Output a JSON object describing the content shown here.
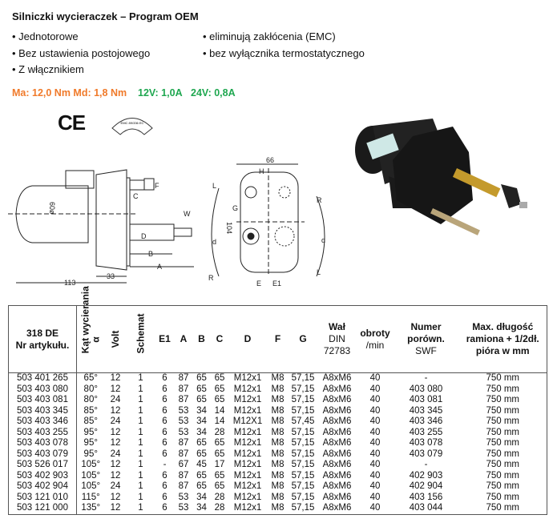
{
  "title": "Silniczki wycieraczek – Program OEM",
  "features_left": [
    "Jednotorowe",
    "Bez ustawienia postojowego",
    "Z włącznikiem"
  ],
  "features_right": [
    "eliminują zakłócenia (EMC)",
    "bez wyłącznika termostatycznego"
  ],
  "specs": {
    "torque": "Ma: 12,0 Nm Md: 1,8 Nm",
    "current_12v": "12V: 1,0A",
    "current_24v": "24V: 0,8A",
    "torque_color": "#f07a2a",
    "current_color": "#1fa750"
  },
  "marks": {
    "ce": "CE",
    "emc": "EMC 89/336 EC"
  },
  "drawing_labels": {
    "d113": "113",
    "d33": "33",
    "d60": "60ø",
    "A": "A",
    "B": "B",
    "C": "C",
    "D": "D",
    "F": "F",
    "W": "W",
    "d66": "66",
    "H": "H",
    "G": "G",
    "d104": "104",
    "E": "E",
    "E1": "E1",
    "R": "R",
    "L": "L",
    "d": "d"
  },
  "table": {
    "headers": {
      "article_1": "318 DE",
      "article_2": "Nr artykułu.",
      "angle_1": "Kąt wycierania",
      "angle_2": "α",
      "volt": "Volt",
      "schemat": "Schemat",
      "e1": "E1",
      "a": "A",
      "b": "B",
      "c": "C",
      "d": "D",
      "f": "F",
      "g": "G",
      "shaft_1": "Wał",
      "shaft_2": "DIN",
      "shaft_3": "72783",
      "rpm_1": "obroty",
      "rpm_2": "/min",
      "ref_1": "Numer",
      "ref_2": "porówn.",
      "ref_3": "SWF",
      "max_1": "Max. długość",
      "max_2": "ramiona + 1/2dł.",
      "max_3": "pióra w mm"
    },
    "rows": [
      [
        "503 401 265",
        "65°",
        "12",
        "1",
        "6",
        "87",
        "65",
        "65",
        "M12x1",
        "M8",
        "57,15",
        "A8xM6",
        "40",
        "-",
        "750 mm"
      ],
      [
        "503 403 080",
        "80°",
        "12",
        "1",
        "6",
        "87",
        "65",
        "65",
        "M12x1",
        "M8",
        "57,15",
        "A8xM6",
        "40",
        "403 080",
        "750 mm"
      ],
      [
        "503 403 081",
        "80°",
        "24",
        "1",
        "6",
        "87",
        "65",
        "65",
        "M12x1",
        "M8",
        "57,15",
        "A8xM6",
        "40",
        "403 081",
        "750 mm"
      ],
      [
        "503 403 345",
        "85°",
        "12",
        "1",
        "6",
        "53",
        "34",
        "14",
        "M12x1",
        "M8",
        "57,15",
        "A8xM6",
        "40",
        "403 345",
        "750 mm"
      ],
      [
        "503 403 346",
        "85°",
        "24",
        "1",
        "6",
        "53",
        "34",
        "14",
        "M12X1",
        "M8",
        "57,45",
        "A8xM6",
        "40",
        "403 346",
        "750 mm"
      ],
      [
        "503 403 255",
        "95°",
        "12",
        "1",
        "6",
        "53",
        "34",
        "28",
        "M12x1",
        "M8",
        "57,15",
        "A8xM6",
        "40",
        "403 255",
        "750 mm"
      ],
      [
        "503 403 078",
        "95°",
        "12",
        "1",
        "6",
        "87",
        "65",
        "65",
        "M12x1",
        "M8",
        "57,15",
        "A8xM6",
        "40",
        "403 078",
        "750 mm"
      ],
      [
        "503 403 079",
        "95°",
        "24",
        "1",
        "6",
        "87",
        "65",
        "65",
        "M12x1",
        "M8",
        "57,15",
        "A8xM6",
        "40",
        "403 079",
        "750 mm"
      ],
      [
        "503 526 017",
        "105°",
        "12",
        "1",
        "-",
        "67",
        "45",
        "17",
        "M12x1",
        "M8",
        "57,15",
        "A8xM6",
        "40",
        "-",
        "750 mm"
      ],
      [
        "503 402 903",
        "105°",
        "12",
        "1",
        "6",
        "87",
        "65",
        "65",
        "M12x1",
        "M8",
        "57,15",
        "A8xM6",
        "40",
        "402 903",
        "750 mm"
      ],
      [
        "503 402 904",
        "105°",
        "24",
        "1",
        "6",
        "87",
        "65",
        "65",
        "M12x1",
        "M8",
        "57,15",
        "A8xM6",
        "40",
        "402 904",
        "750 mm"
      ],
      [
        "503 121 010",
        "115°",
        "12",
        "1",
        "6",
        "53",
        "34",
        "28",
        "M12x1",
        "M8",
        "57,15",
        "A8xM6",
        "40",
        "403 156",
        "750 mm"
      ],
      [
        "503 121 000",
        "135°",
        "12",
        "1",
        "6",
        "53",
        "34",
        "28",
        "M12x1",
        "M8",
        "57,15",
        "A8xM6",
        "40",
        "403 044",
        "750 mm"
      ]
    ]
  }
}
